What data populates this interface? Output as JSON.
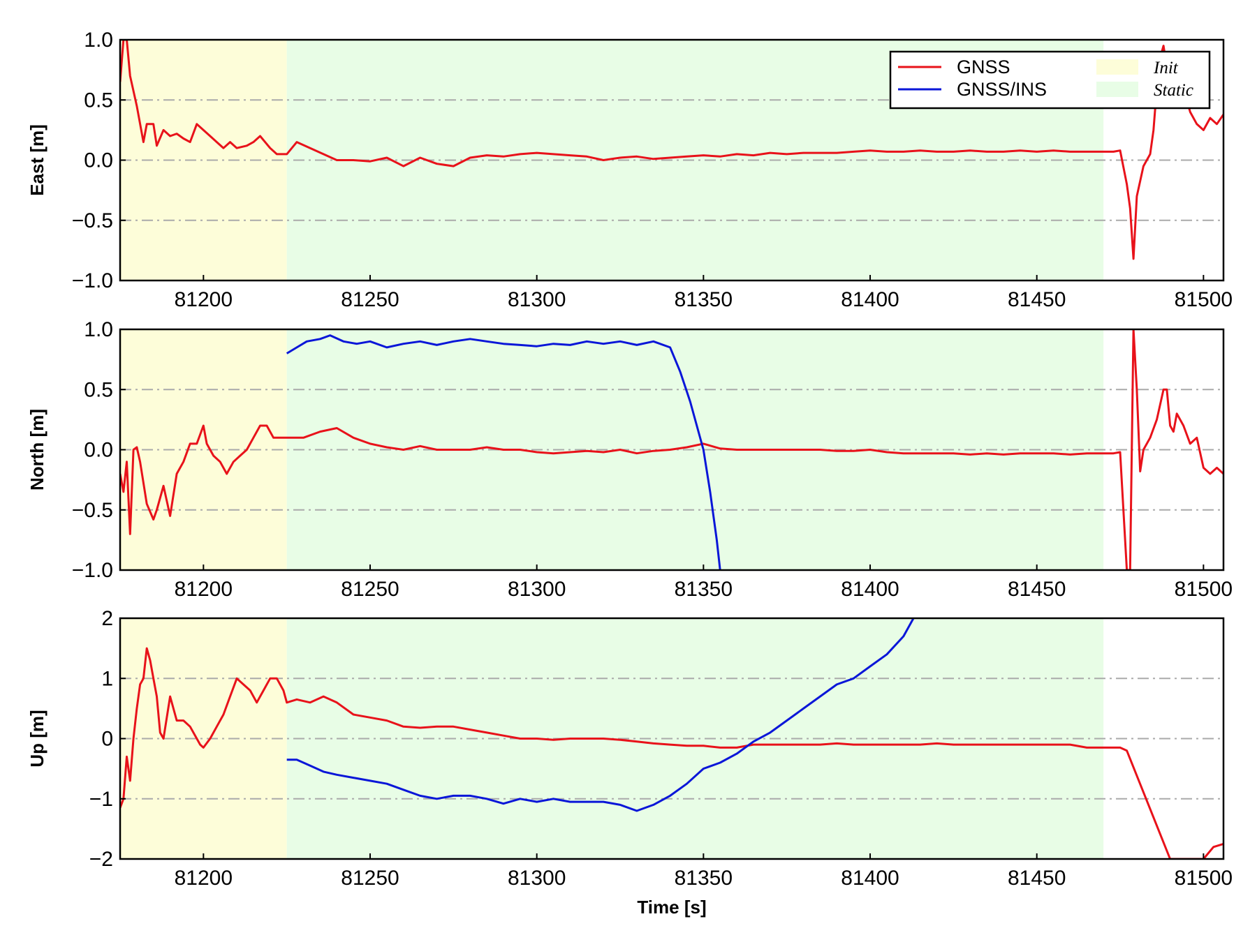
{
  "chart_data": [
    {
      "type": "line",
      "ylabel": "East [m]",
      "xlabel": "",
      "xlim": [
        81175,
        81506
      ],
      "ylim": [
        -1.0,
        1.0
      ],
      "xticks": [
        "81200",
        "81250",
        "81300",
        "81350",
        "81400",
        "81450",
        "81500"
      ],
      "yticks": [
        "−1.0",
        "−0.5",
        "0.0",
        "0.5",
        "1.0"
      ],
      "grid": "horizontal dash-dot",
      "legend": "top-right",
      "regions": [
        {
          "name": "Init",
          "x": [
            81175,
            81225
          ],
          "color": "#fdfdd9"
        },
        {
          "name": "Static",
          "x": [
            81225,
            81470
          ],
          "color": "#e8fde6"
        }
      ],
      "series": [
        {
          "name": "GNSS",
          "color": "#e8121a",
          "x": [
            81175,
            81176,
            81177,
            81178,
            81180,
            81182,
            81183,
            81185,
            81186,
            81188,
            81190,
            81192,
            81194,
            81196,
            81198,
            81200,
            81202,
            81204,
            81206,
            81208,
            81210,
            81213,
            81215,
            81217,
            81220,
            81222,
            81225,
            81228,
            81232,
            81236,
            81240,
            81245,
            81250,
            81255,
            81260,
            81265,
            81270,
            81275,
            81280,
            81285,
            81290,
            81295,
            81300,
            81305,
            81310,
            81315,
            81320,
            81325,
            81330,
            81335,
            81340,
            81345,
            81350,
            81355,
            81360,
            81365,
            81370,
            81375,
            81380,
            81385,
            81390,
            81395,
            81400,
            81405,
            81410,
            81415,
            81420,
            81425,
            81430,
            81435,
            81440,
            81445,
            81450,
            81455,
            81460,
            81465,
            81470,
            81473,
            81475,
            81477,
            81478,
            81479,
            81480,
            81482,
            81484,
            81485,
            81486,
            81487,
            81488,
            81490,
            81492,
            81494,
            81496,
            81498,
            81500,
            81502,
            81504,
            81506
          ],
          "y": [
            0.65,
            1.0,
            1.0,
            0.7,
            0.45,
            0.15,
            0.3,
            0.3,
            0.12,
            0.25,
            0.2,
            0.22,
            0.18,
            0.15,
            0.3,
            0.25,
            0.2,
            0.15,
            0.1,
            0.15,
            0.1,
            0.12,
            0.15,
            0.2,
            0.1,
            0.05,
            0.05,
            0.15,
            0.1,
            0.05,
            0.0,
            0.0,
            -0.01,
            0.02,
            -0.05,
            0.02,
            -0.03,
            -0.05,
            0.02,
            0.04,
            0.03,
            0.05,
            0.06,
            0.05,
            0.04,
            0.03,
            0.0,
            0.02,
            0.03,
            0.01,
            0.02,
            0.03,
            0.04,
            0.03,
            0.05,
            0.04,
            0.06,
            0.05,
            0.06,
            0.06,
            0.06,
            0.07,
            0.08,
            0.07,
            0.07,
            0.08,
            0.07,
            0.07,
            0.08,
            0.07,
            0.07,
            0.08,
            0.07,
            0.08,
            0.07,
            0.07,
            0.07,
            0.07,
            0.08,
            -0.2,
            -0.4,
            -0.82,
            -0.3,
            -0.05,
            0.05,
            0.25,
            0.6,
            0.85,
            0.95,
            0.6,
            0.5,
            0.6,
            0.4,
            0.3,
            0.25,
            0.35,
            0.3,
            0.38
          ]
        },
        {
          "name": "GNSS/INS",
          "color": "#0a16d8",
          "x": [],
          "y": []
        }
      ]
    },
    {
      "type": "line",
      "ylabel": "North [m]",
      "xlabel": "",
      "xlim": [
        81175,
        81506
      ],
      "ylim": [
        -1.0,
        1.0
      ],
      "xticks": [
        "81200",
        "81250",
        "81300",
        "81350",
        "81400",
        "81450",
        "81500"
      ],
      "yticks": [
        "−1.0",
        "−0.5",
        "0.0",
        "0.5",
        "1.0"
      ],
      "grid": "horizontal dash-dot",
      "regions": [
        {
          "name": "Init",
          "x": [
            81175,
            81225
          ],
          "color": "#fdfdd9"
        },
        {
          "name": "Static",
          "x": [
            81225,
            81470
          ],
          "color": "#e8fde6"
        }
      ],
      "series": [
        {
          "name": "GNSS",
          "color": "#e8121a",
          "x": [
            81175,
            81176,
            81177,
            81178,
            81179,
            81180,
            81181,
            81183,
            81185,
            81186,
            81188,
            81190,
            81192,
            81194,
            81196,
            81198,
            81200,
            81201,
            81203,
            81205,
            81207,
            81209,
            81211,
            81213,
            81215,
            81217,
            81219,
            81221,
            81223,
            81225,
            81230,
            81235,
            81240,
            81245,
            81250,
            81255,
            81260,
            81265,
            81270,
            81275,
            81280,
            81285,
            81290,
            81295,
            81300,
            81305,
            81310,
            81315,
            81320,
            81325,
            81330,
            81335,
            81340,
            81345,
            81350,
            81355,
            81360,
            81365,
            81370,
            81375,
            81380,
            81385,
            81390,
            81395,
            81400,
            81405,
            81410,
            81415,
            81420,
            81425,
            81430,
            81435,
            81440,
            81445,
            81450,
            81455,
            81460,
            81465,
            81470,
            81473,
            81475,
            81477,
            81478,
            81479,
            81480,
            81481,
            81482,
            81484,
            81486,
            81488,
            81489,
            81490,
            81491,
            81492,
            81494,
            81496,
            81498,
            81500,
            81502,
            81504,
            81506
          ],
          "y": [
            -0.2,
            -0.35,
            -0.1,
            -0.7,
            0.0,
            0.02,
            -0.1,
            -0.45,
            -0.58,
            -0.5,
            -0.3,
            -0.55,
            -0.2,
            -0.1,
            0.05,
            0.05,
            0.2,
            0.05,
            -0.05,
            -0.1,
            -0.2,
            -0.1,
            -0.05,
            0.0,
            0.1,
            0.2,
            0.2,
            0.1,
            0.1,
            0.1,
            0.1,
            0.15,
            0.18,
            0.1,
            0.05,
            0.02,
            0.0,
            0.03,
            0.0,
            0.0,
            0.0,
            0.02,
            0.0,
            0.0,
            -0.02,
            -0.03,
            -0.02,
            -0.01,
            -0.02,
            0.0,
            -0.03,
            -0.01,
            0.0,
            0.02,
            0.05,
            0.01,
            0.0,
            0.0,
            0.0,
            0.0,
            0.0,
            0.0,
            -0.01,
            -0.01,
            0.0,
            -0.02,
            -0.03,
            -0.03,
            -0.03,
            -0.03,
            -0.04,
            -0.03,
            -0.04,
            -0.03,
            -0.03,
            -0.03,
            -0.04,
            -0.03,
            -0.03,
            -0.03,
            -0.02,
            -1.0,
            -1.0,
            1.0,
            0.5,
            -0.18,
            0.0,
            0.1,
            0.25,
            0.5,
            0.5,
            0.2,
            0.15,
            0.3,
            0.2,
            0.05,
            0.1,
            -0.15,
            -0.2,
            -0.15,
            -0.2
          ]
        },
        {
          "name": "GNSS/INS",
          "color": "#0a16d8",
          "x": [
            81225,
            81228,
            81231,
            81235,
            81238,
            81242,
            81246,
            81250,
            81255,
            81260,
            81265,
            81270,
            81275,
            81280,
            81285,
            81290,
            81295,
            81300,
            81305,
            81310,
            81315,
            81320,
            81325,
            81330,
            81335,
            81340,
            81343,
            81346,
            81348,
            81350,
            81352,
            81354,
            81355
          ],
          "y": [
            0.8,
            0.85,
            0.9,
            0.92,
            0.95,
            0.9,
            0.88,
            0.9,
            0.85,
            0.88,
            0.9,
            0.87,
            0.9,
            0.92,
            0.9,
            0.88,
            0.87,
            0.86,
            0.88,
            0.87,
            0.9,
            0.88,
            0.9,
            0.87,
            0.9,
            0.85,
            0.65,
            0.4,
            0.2,
            0.0,
            -0.35,
            -0.75,
            -1.0
          ]
        }
      ]
    },
    {
      "type": "line",
      "ylabel": "Up [m]",
      "xlabel": "Time [s]",
      "xlim": [
        81175,
        81506
      ],
      "ylim": [
        -2,
        2
      ],
      "xticks": [
        "81200",
        "81250",
        "81300",
        "81350",
        "81400",
        "81450",
        "81500"
      ],
      "yticks": [
        "−2",
        "−1",
        "0",
        "1",
        "2"
      ],
      "grid": "horizontal dash-dot",
      "regions": [
        {
          "name": "Init",
          "x": [
            81175,
            81225
          ],
          "color": "#fdfdd9"
        },
        {
          "name": "Static",
          "x": [
            81225,
            81470
          ],
          "color": "#e8fde6"
        }
      ],
      "series": [
        {
          "name": "GNSS",
          "color": "#e8121a",
          "x": [
            81175,
            81176,
            81177,
            81178,
            81179,
            81180,
            81181,
            81182,
            81183,
            81184,
            81185,
            81186,
            81187,
            81188,
            81190,
            81192,
            81194,
            81196,
            81198,
            81199,
            81200,
            81202,
            81204,
            81206,
            81208,
            81210,
            81212,
            81214,
            81216,
            81218,
            81220,
            81222,
            81224,
            81225,
            81228,
            81232,
            81236,
            81240,
            81245,
            81250,
            81255,
            81260,
            81265,
            81270,
            81275,
            81280,
            81285,
            81290,
            81295,
            81300,
            81305,
            81310,
            81315,
            81320,
            81325,
            81330,
            81335,
            81340,
            81345,
            81350,
            81355,
            81360,
            81365,
            81370,
            81375,
            81380,
            81385,
            81390,
            81395,
            81400,
            81405,
            81410,
            81415,
            81420,
            81425,
            81430,
            81435,
            81440,
            81445,
            81450,
            81455,
            81460,
            81465,
            81470,
            81473,
            81475,
            81477,
            81490,
            81495,
            81500,
            81503,
            81506
          ],
          "y": [
            -1.15,
            -1.0,
            -0.3,
            -0.7,
            0.0,
            0.5,
            0.9,
            1.0,
            1.5,
            1.3,
            1.0,
            0.7,
            0.1,
            0.0,
            0.7,
            0.3,
            0.3,
            0.2,
            0.0,
            -0.1,
            -0.15,
            0.0,
            0.2,
            0.4,
            0.7,
            1.0,
            0.9,
            0.8,
            0.6,
            0.8,
            1.0,
            1.0,
            0.8,
            0.6,
            0.65,
            0.6,
            0.7,
            0.6,
            0.4,
            0.35,
            0.3,
            0.2,
            0.18,
            0.2,
            0.2,
            0.15,
            0.1,
            0.05,
            0.0,
            0.0,
            -0.02,
            0.0,
            0.0,
            0.0,
            -0.02,
            -0.05,
            -0.08,
            -0.1,
            -0.12,
            -0.12,
            -0.15,
            -0.15,
            -0.1,
            -0.1,
            -0.1,
            -0.1,
            -0.1,
            -0.08,
            -0.1,
            -0.1,
            -0.1,
            -0.1,
            -0.1,
            -0.08,
            -0.1,
            -0.1,
            -0.1,
            -0.1,
            -0.1,
            -0.1,
            -0.1,
            -0.1,
            -0.15,
            -0.15,
            -0.15,
            -0.15,
            -0.2,
            -2.0,
            -2.0,
            -2.0,
            -1.8,
            -1.75
          ]
        },
        {
          "name": "GNSS/INS",
          "color": "#0a16d8",
          "x": [
            81225,
            81228,
            81232,
            81236,
            81240,
            81245,
            81250,
            81255,
            81260,
            81265,
            81270,
            81275,
            81280,
            81285,
            81290,
            81295,
            81300,
            81305,
            81310,
            81315,
            81320,
            81325,
            81330,
            81335,
            81340,
            81345,
            81350,
            81355,
            81360,
            81365,
            81370,
            81375,
            81380,
            81385,
            81390,
            81395,
            81400,
            81405,
            81410,
            81413
          ],
          "y": [
            -0.35,
            -0.35,
            -0.45,
            -0.55,
            -0.6,
            -0.65,
            -0.7,
            -0.75,
            -0.85,
            -0.95,
            -1.0,
            -0.95,
            -0.95,
            -1.0,
            -1.08,
            -1.0,
            -1.05,
            -1.0,
            -1.05,
            -1.05,
            -1.05,
            -1.1,
            -1.2,
            -1.1,
            -0.95,
            -0.75,
            -0.5,
            -0.4,
            -0.25,
            -0.05,
            0.1,
            0.3,
            0.5,
            0.7,
            0.9,
            1.0,
            1.2,
            1.4,
            1.7,
            2.0
          ]
        }
      ]
    }
  ],
  "legend": {
    "lines": [
      {
        "label": "GNSS",
        "color": "#e8121a"
      },
      {
        "label": "GNSS/INS",
        "color": "#0a16d8"
      }
    ],
    "regions": [
      {
        "label": "Init",
        "color": "#fdfdd9"
      },
      {
        "label": "Static",
        "color": "#e8fde6"
      }
    ]
  }
}
